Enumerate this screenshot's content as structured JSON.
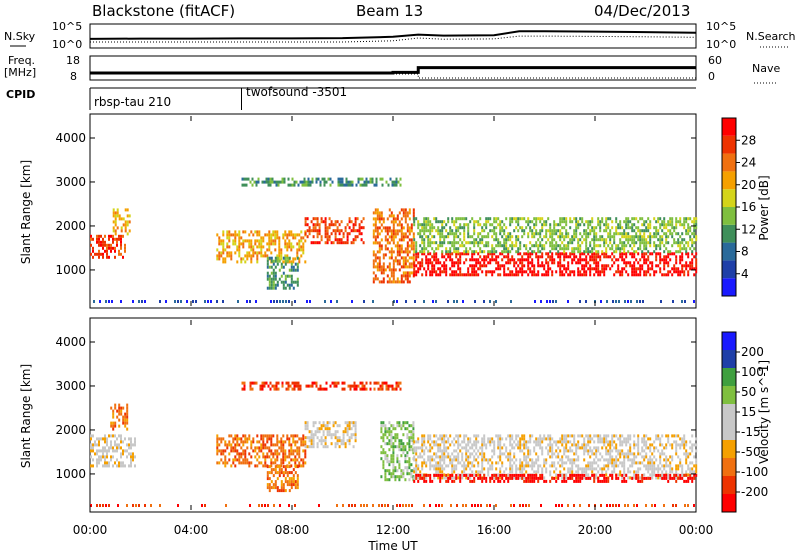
{
  "header": {
    "station": "Blackstone (fitACF)",
    "beam": "Beam 13",
    "date": "04/Dec/2013"
  },
  "top_panels": {
    "nsky_label": "N.Sky",
    "nsearch_label": "N.Search",
    "freq_label": "Freq.",
    "freq_unit": "[MHz]",
    "nave_label": "Nave",
    "cpid_label": "CPID",
    "left_ticks_row1": [
      "10^5",
      "10^0"
    ],
    "right_ticks_row1": [
      "10^5",
      "10^0"
    ],
    "left_ticks_row2": [
      "18",
      "8"
    ],
    "right_ticks_row2": [
      "60",
      "0"
    ],
    "cpid_names": [
      "rbsp-tau 210",
      "twofsound -3501"
    ],
    "cpid_switch_hour": 6.0
  },
  "colors": {
    "power_scale": [
      "#1a1aff",
      "#1f3fa8",
      "#2a6a9a",
      "#3f8f5a",
      "#7fbf3f",
      "#d4d41a",
      "#f5a000",
      "#f07010",
      "#ee3300",
      "#ff0000"
    ],
    "velocity_scale": [
      "#ff0000",
      "#ee3300",
      "#f07010",
      "#f5a000",
      "#c8c8c8",
      "#c8c8c8",
      "#7fbf3f",
      "#3f9f3f",
      "#1f3fa8",
      "#1a1aff"
    ]
  },
  "chart_data": [
    {
      "type": "line",
      "panel": "noise",
      "x_hours": [
        0,
        2,
        4,
        6,
        8,
        10,
        12,
        13,
        14,
        16,
        17,
        18,
        20,
        22,
        24
      ],
      "series": [
        {
          "name": "N.Sky",
          "values": [
            60,
            70,
            70,
            80,
            80,
            90,
            200,
            700,
            400,
            500,
            5000,
            5000,
            4000,
            3000,
            2000
          ]
        },
        {
          "name": "N.Search",
          "values": [
            10,
            10,
            10,
            10,
            10,
            10,
            20,
            100,
            50,
            60,
            300,
            300,
            250,
            200,
            150
          ]
        }
      ],
      "ylim": [
        1,
        100000
      ]
    },
    {
      "type": "line",
      "panel": "frequency",
      "x_hours": [
        0,
        6,
        12,
        13,
        24
      ],
      "series": [
        {
          "name": "Freq.",
          "values": [
            10.5,
            10.5,
            10.8,
            13.2,
            13.2
          ]
        },
        {
          "name": "Nave",
          "values": [
            10,
            10,
            10,
            8,
            8
          ]
        }
      ],
      "ylim": [
        8,
        18
      ]
    },
    {
      "type": "heatmap",
      "panel": "power",
      "xlabel": "",
      "ylabel": "Slant Range [km]",
      "colorbar_label": "Power [dB]",
      "colorbar_ticks": [
        "4",
        "8",
        "12",
        "16",
        "20",
        "24",
        "28"
      ],
      "xlim_hours": [
        0,
        24
      ],
      "ylim_km": [
        180,
        4500
      ],
      "y_ticks": [
        "1000",
        "2000",
        "3000",
        "4000"
      ],
      "regions": [
        {
          "t0": 0.0,
          "t1": 1.4,
          "r0": 1300,
          "r1": 1800,
          "value": 26
        },
        {
          "t0": 0.9,
          "t1": 1.6,
          "r0": 1800,
          "r1": 2400,
          "value": 20
        },
        {
          "t0": 5.0,
          "t1": 8.5,
          "r0": 1200,
          "r1": 1900,
          "value": 18
        },
        {
          "t0": 7.0,
          "t1": 8.2,
          "r0": 600,
          "r1": 1300,
          "value": 10
        },
        {
          "t0": 8.5,
          "t1": 10.8,
          "r0": 1600,
          "r1": 2200,
          "value": 24
        },
        {
          "t0": 6.0,
          "t1": 12.3,
          "r0": 2950,
          "r1": 3100,
          "value": 8
        },
        {
          "t0": 11.2,
          "t1": 12.8,
          "r0": 700,
          "r1": 2400,
          "value": 22
        },
        {
          "t0": 12.8,
          "t1": 24.0,
          "r0": 900,
          "r1": 1400,
          "value": 28
        },
        {
          "t0": 12.8,
          "t1": 24.0,
          "r0": 1400,
          "r1": 2200,
          "value": 12
        }
      ]
    },
    {
      "type": "heatmap",
      "panel": "velocity",
      "xlabel": "Time UT",
      "ylabel": "Slant Range [km]",
      "colorbar_label": "Velocity [m s^-1]",
      "colorbar_ticks": [
        "-200",
        "-100",
        "-50",
        "-15",
        "15",
        "50",
        "100",
        "200"
      ],
      "xlim_hours": [
        0,
        24
      ],
      "x_ticks": [
        "00:00",
        "04:00",
        "08:00",
        "12:00",
        "16:00",
        "20:00",
        "00:00"
      ],
      "ylim_km": [
        180,
        4500
      ],
      "y_ticks": [
        "1000",
        "2000",
        "3000",
        "4000"
      ],
      "regions": [
        {
          "t0": 0.0,
          "t1": 1.8,
          "r0": 1200,
          "r1": 1900,
          "value": 0
        },
        {
          "t0": 0.8,
          "t1": 1.5,
          "r0": 2000,
          "r1": 2600,
          "value": -60
        },
        {
          "t0": 5.0,
          "t1": 8.5,
          "r0": 1200,
          "r1": 1900,
          "value": -60
        },
        {
          "t0": 7.0,
          "t1": 8.2,
          "r0": 600,
          "r1": 1200,
          "value": -80
        },
        {
          "t0": 8.5,
          "t1": 10.5,
          "r0": 1600,
          "r1": 2200,
          "value": 0
        },
        {
          "t0": 6.0,
          "t1": 12.3,
          "r0": 2950,
          "r1": 3100,
          "value": -120
        },
        {
          "t0": 11.5,
          "t1": 12.8,
          "r0": 900,
          "r1": 2200,
          "value": 30
        },
        {
          "t0": 12.8,
          "t1": 24.0,
          "r0": 900,
          "r1": 1900,
          "value": 0
        },
        {
          "t0": 12.8,
          "t1": 24.0,
          "r0": 800,
          "r1": 1000,
          "value": -200
        }
      ]
    }
  ]
}
